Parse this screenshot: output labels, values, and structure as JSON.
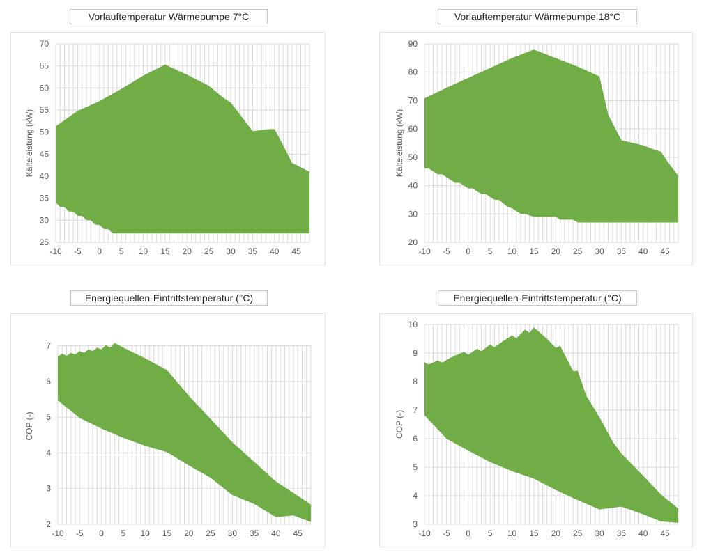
{
  "titles": [
    "Vorlauftemperatur Wärmepumpe 7°C",
    "Vorlauftemperatur Wärmepumpe 18°C",
    "Energiequellen-Eintrittstemperatur (°C)",
    "Energiequellen-Eintrittstemperatur (°C)"
  ],
  "colors": {
    "fill": "#70ad47",
    "grid": "#d9d9d9",
    "axis_text": "#595959"
  },
  "chart_data": [
    {
      "type": "area",
      "title": "Vorlauftemperatur Wärmepumpe 7°C",
      "xlabel": "",
      "ylabel": "Kälteleistung (kW)",
      "xlim": [
        -10,
        48
      ],
      "ylim": [
        25,
        70
      ],
      "xticks": [
        -10,
        -5,
        0,
        5,
        10,
        15,
        20,
        25,
        30,
        35,
        40,
        45
      ],
      "yticks": [
        25,
        30,
        35,
        40,
        45,
        50,
        55,
        60,
        65,
        70
      ],
      "grid": true,
      "series": [
        {
          "name": "upper",
          "x": [
            -10,
            -5,
            0,
            5,
            10,
            15,
            20,
            25,
            28,
            30,
            33,
            35,
            38,
            40,
            42,
            44,
            46,
            48
          ],
          "values": [
            51.3,
            54.8,
            57.0,
            59.8,
            62.8,
            65.3,
            63.0,
            60.5,
            58.0,
            56.7,
            52.8,
            50.2,
            50.6,
            50.7,
            47.0,
            43.0,
            42.0,
            41.0
          ]
        },
        {
          "name": "lower",
          "x": [
            -10,
            -9,
            -8,
            -7,
            -6,
            -5,
            -4,
            -3,
            -2,
            -1,
            0,
            1,
            2,
            3,
            48
          ],
          "values": [
            34.0,
            33.0,
            33.0,
            32.0,
            32.0,
            31.0,
            31.0,
            30.0,
            30.0,
            29.0,
            29.0,
            28.0,
            28.0,
            27.0,
            27.0
          ]
        }
      ]
    },
    {
      "type": "area",
      "title": "Vorlauftemperatur Wärmepumpe 18°C",
      "xlabel": "",
      "ylabel": "Kälteleistung (kW)",
      "xlim": [
        -10,
        48
      ],
      "ylim": [
        20,
        90
      ],
      "xticks": [
        -10,
        -5,
        0,
        5,
        10,
        15,
        20,
        25,
        30,
        35,
        40,
        45
      ],
      "yticks": [
        20,
        30,
        40,
        50,
        60,
        70,
        80,
        90
      ],
      "grid": true,
      "series": [
        {
          "name": "upper",
          "x": [
            -10,
            -5,
            0,
            5,
            10,
            15,
            20,
            25,
            30,
            32,
            35,
            40,
            42,
            44,
            46,
            48
          ],
          "values": [
            70.8,
            74.5,
            78.0,
            81.5,
            85.0,
            88.0,
            85.0,
            82.0,
            78.5,
            65.0,
            56.0,
            54.2,
            53.0,
            52.0,
            47.5,
            43.5
          ]
        },
        {
          "name": "lower",
          "x": [
            -10,
            -9,
            -7,
            -6,
            -3,
            -2,
            0,
            1,
            3,
            4,
            6,
            7,
            9,
            10,
            12,
            13,
            15,
            20,
            21,
            24,
            25,
            48
          ],
          "values": [
            46.0,
            46.0,
            44.0,
            44.0,
            41.0,
            41.0,
            39.0,
            39.0,
            37.0,
            37.0,
            35.0,
            35.0,
            32.5,
            32.0,
            30.0,
            30.0,
            29.0,
            29.0,
            28.0,
            28.0,
            27.0,
            27.0
          ]
        }
      ]
    },
    {
      "type": "area",
      "title": "Energiequellen-Eintrittstemperatur (°C)",
      "xlabel": "",
      "ylabel": "COP (-)",
      "xlim": [
        -10,
        48
      ],
      "ylim": [
        2,
        7.5
      ],
      "xticks": [
        -10,
        -5,
        0,
        5,
        10,
        15,
        20,
        25,
        30,
        35,
        40,
        45
      ],
      "yticks": [
        2,
        3,
        4,
        5,
        6,
        7
      ],
      "grid": true,
      "series": [
        {
          "name": "upper",
          "x": [
            -10,
            -9,
            -8,
            -7,
            -6,
            -5,
            -4,
            -3,
            -2,
            -1,
            0,
            1,
            2,
            3,
            5,
            10,
            15,
            20,
            25,
            30,
            35,
            40,
            45,
            48
          ],
          "values": [
            6.7,
            6.78,
            6.72,
            6.8,
            6.76,
            6.85,
            6.8,
            6.9,
            6.85,
            6.95,
            6.9,
            7.02,
            6.95,
            7.08,
            6.95,
            6.65,
            6.32,
            5.6,
            4.95,
            4.3,
            3.75,
            3.2,
            2.8,
            2.55
          ]
        },
        {
          "name": "lower",
          "x": [
            -10,
            -5,
            0,
            5,
            10,
            15,
            20,
            25,
            30,
            32,
            35,
            40,
            44,
            48
          ],
          "values": [
            5.47,
            4.98,
            4.68,
            4.42,
            4.2,
            4.02,
            3.65,
            3.3,
            2.82,
            2.72,
            2.57,
            2.2,
            2.25,
            2.06
          ]
        }
      ]
    },
    {
      "type": "area",
      "title": "Energiequellen-Eintrittstemperatur (°C)",
      "xlabel": "",
      "ylabel": "COP (-)",
      "xlim": [
        -10,
        48
      ],
      "ylim": [
        3,
        10
      ],
      "xticks": [
        -10,
        -5,
        0,
        5,
        10,
        15,
        20,
        25,
        30,
        35,
        40,
        45
      ],
      "yticks": [
        3,
        4,
        5,
        6,
        7,
        8,
        9,
        10
      ],
      "grid": true,
      "series": [
        {
          "name": "upper",
          "x": [
            -10,
            -9,
            -7,
            -6,
            -4,
            -3,
            -1,
            0,
            2,
            3,
            5,
            6,
            8,
            10,
            11,
            13,
            14,
            15,
            18,
            20,
            21,
            24,
            25,
            27,
            30,
            33,
            35,
            40,
            44,
            48
          ],
          "values": [
            8.67,
            8.6,
            8.74,
            8.66,
            8.84,
            8.91,
            9.04,
            8.94,
            9.15,
            9.06,
            9.3,
            9.2,
            9.42,
            9.62,
            9.52,
            9.82,
            9.71,
            9.9,
            9.5,
            9.18,
            9.25,
            8.36,
            8.38,
            7.5,
            6.75,
            5.9,
            5.48,
            4.7,
            4.05,
            3.55
          ]
        },
        {
          "name": "lower",
          "x": [
            -10,
            -5,
            0,
            5,
            10,
            15,
            20,
            25,
            30,
            35,
            40,
            44,
            48
          ],
          "values": [
            6.82,
            6.0,
            5.58,
            5.18,
            4.86,
            4.6,
            4.2,
            3.85,
            3.52,
            3.62,
            3.35,
            3.1,
            3.05
          ]
        }
      ]
    }
  ]
}
